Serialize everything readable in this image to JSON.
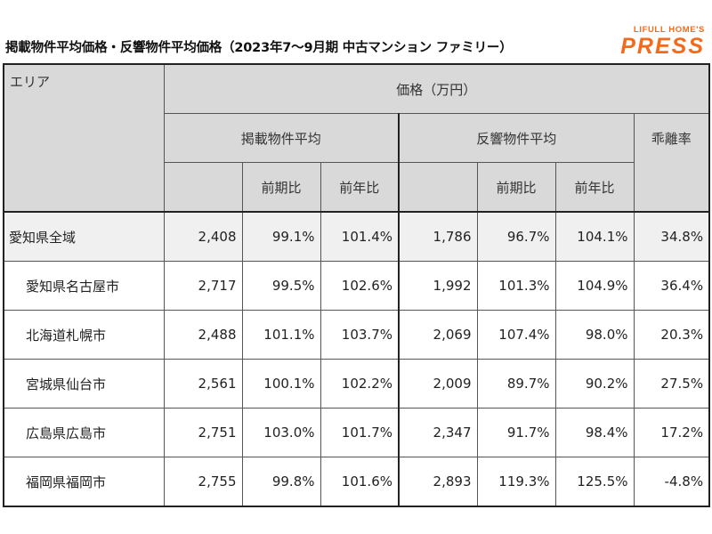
{
  "title": "掲載物件平均価格・反響物件平均価格（2023年7～9月期 中古マンション ファミリー）",
  "logo": {
    "sup": "LIFULL HOME'S",
    "main": "PRESS",
    "color": "#f26b1d"
  },
  "header": {
    "area": "エリア",
    "price": "価格（万円）",
    "listed_avg": "掲載物件平均",
    "response_avg": "反響物件平均",
    "divergence": "乖離率",
    "qoq": "前期比",
    "yoy": "前年比"
  },
  "rows": [
    {
      "name": "愛知県全域",
      "listed": "2,408",
      "listed_qoq": "99.1%",
      "listed_yoy": "101.4%",
      "resp": "1,786",
      "resp_qoq": "96.7%",
      "resp_yoy": "104.1%",
      "rate": "34.8%"
    },
    {
      "name": "愛知県名古屋市",
      "listed": "2,717",
      "listed_qoq": "99.5%",
      "listed_yoy": "102.6%",
      "resp": "1,992",
      "resp_qoq": "101.3%",
      "resp_yoy": "104.9%",
      "rate": "36.4%"
    },
    {
      "name": "北海道札幌市",
      "listed": "2,488",
      "listed_qoq": "101.1%",
      "listed_yoy": "103.7%",
      "resp": "2,069",
      "resp_qoq": "107.4%",
      "resp_yoy": "98.0%",
      "rate": "20.3%"
    },
    {
      "name": "宮城県仙台市",
      "listed": "2,561",
      "listed_qoq": "100.1%",
      "listed_yoy": "102.2%",
      "resp": "2,009",
      "resp_qoq": "89.7%",
      "resp_yoy": "90.2%",
      "rate": "27.5%"
    },
    {
      "name": "広島県広島市",
      "listed": "2,751",
      "listed_qoq": "103.0%",
      "listed_yoy": "101.7%",
      "resp": "2,347",
      "resp_qoq": "91.7%",
      "resp_yoy": "98.4%",
      "rate": "17.2%"
    },
    {
      "name": "福岡県福岡市",
      "listed": "2,755",
      "listed_qoq": "99.8%",
      "listed_yoy": "101.6%",
      "resp": "2,893",
      "resp_qoq": "119.3%",
      "resp_yoy": "125.5%",
      "rate": "-4.8%"
    }
  ]
}
